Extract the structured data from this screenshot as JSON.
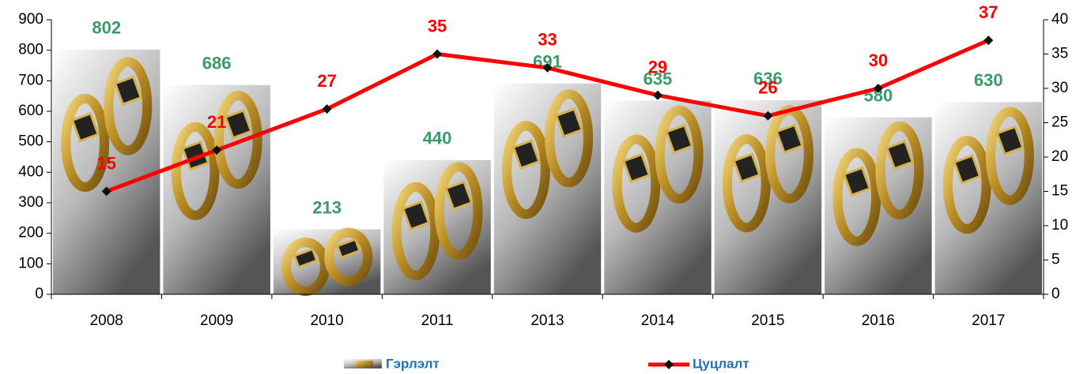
{
  "chart_data": {
    "type": "bar-line",
    "categories": [
      "2008",
      "2009",
      "2010",
      "2011",
      "2013",
      "2014",
      "2015",
      "2016",
      "2017"
    ],
    "series": [
      {
        "name": "Гэрлэлт",
        "type": "bar",
        "axis": "y",
        "color": "#c9a43a",
        "label_color": "#3a9a68",
        "values": [
          802,
          686,
          213,
          440,
          691,
          635,
          636,
          580,
          630
        ]
      },
      {
        "name": "Цуцлалт",
        "type": "line",
        "axis": "y2",
        "color": "#ff0000",
        "marker_color": "#111111",
        "values": [
          15,
          21,
          27,
          35,
          33,
          29,
          26,
          30,
          37
        ]
      }
    ],
    "ylim": [
      0,
      900
    ],
    "yticks": [
      0,
      100,
      200,
      300,
      400,
      500,
      600,
      700,
      800,
      900
    ],
    "y2lim": [
      0,
      40
    ],
    "y2ticks": [
      0,
      5,
      10,
      15,
      20,
      25,
      30,
      35,
      40
    ],
    "legend": "bottom"
  }
}
